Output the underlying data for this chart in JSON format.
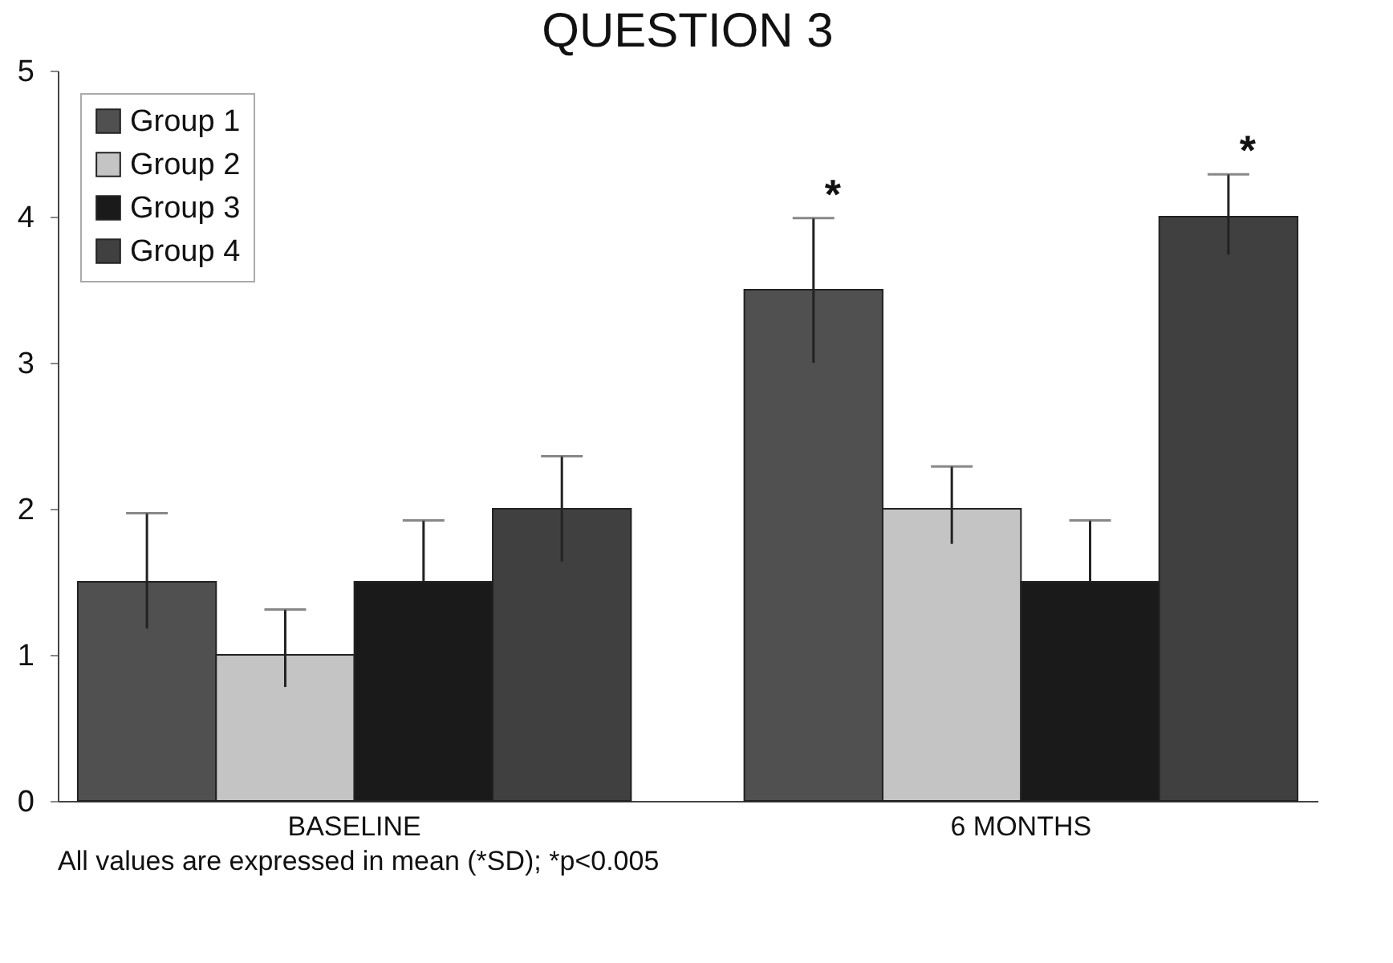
{
  "chart_data": {
    "type": "bar",
    "title": "QUESTION 3",
    "categories": [
      "BASELINE",
      "6 MONTHS"
    ],
    "series": [
      {
        "name": "Group 1",
        "color": "#505050",
        "values": [
          1.5,
          3.5
        ],
        "errors": [
          [
            1.18,
            1.97
          ],
          [
            3.0,
            3.99
          ]
        ]
      },
      {
        "name": "Group 2",
        "color": "#c4c4c4",
        "values": [
          1.0,
          2.0
        ],
        "errors": [
          [
            0.78,
            1.31
          ],
          [
            1.76,
            2.29
          ]
        ]
      },
      {
        "name": "Group 3",
        "color": "#1a1a1a",
        "values": [
          1.5,
          1.5
        ],
        "errors": [
          [
            1.5,
            1.92
          ],
          [
            1.5,
            1.92
          ]
        ]
      },
      {
        "name": "Group 4",
        "color": "#404040",
        "values": [
          2.0,
          4.0
        ],
        "errors": [
          [
            1.64,
            2.36
          ],
          [
            3.74,
            4.29
          ]
        ]
      }
    ],
    "ylim": [
      0,
      5
    ],
    "yticks": [
      0,
      1,
      2,
      3,
      4,
      5
    ],
    "grid": false,
    "legend": "top left",
    "annotations": [
      "*",
      "*",
      "All values are expressed in mean (*SD); *p<0.005"
    ]
  }
}
